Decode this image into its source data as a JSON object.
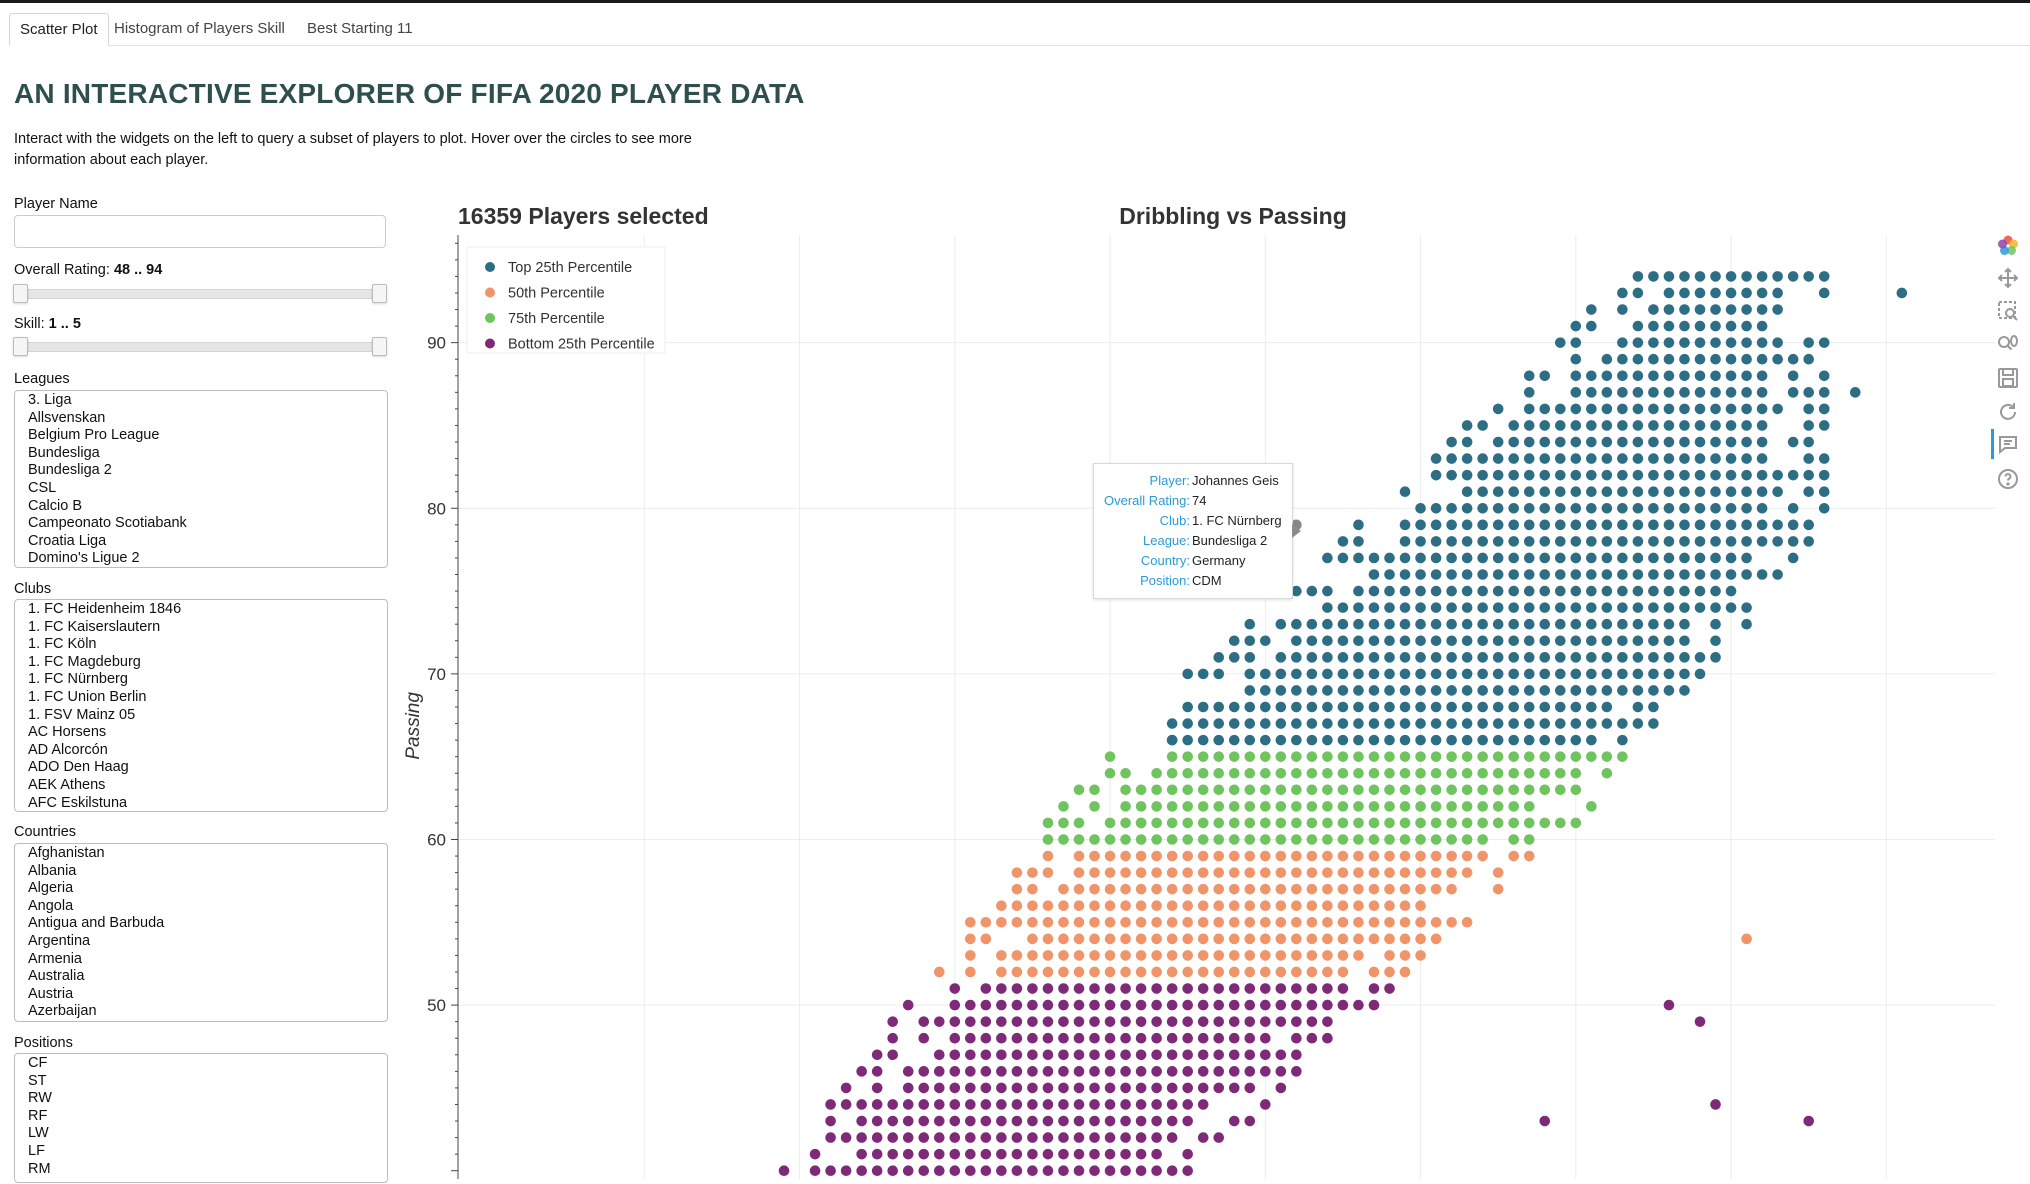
{
  "tabs": [
    {
      "label": "Scatter Plot",
      "active": true
    },
    {
      "label": "Histogram of Players Skill",
      "active": false
    },
    {
      "label": "Best Starting 11",
      "active": false
    }
  ],
  "page": {
    "title": "AN INTERACTIVE EXPLORER OF FIFA 2020 PLAYER DATA",
    "description": "Interact with the widgets on the left to query a subset of players to plot. Hover over the circles to see more information about each player."
  },
  "controls": {
    "player_name": {
      "label": "Player Name",
      "value": "",
      "placeholder": ""
    },
    "overall_rating": {
      "label": "Overall Rating:",
      "value_text": "48 .. 94",
      "range": [
        48,
        94
      ],
      "selected": [
        48,
        94
      ]
    },
    "skill": {
      "label": "Skill:",
      "value_text": "1 .. 5",
      "range": [
        1,
        5
      ],
      "selected": [
        1,
        5
      ]
    },
    "leagues": {
      "label": "Leagues",
      "options": [
        "3. Liga",
        "Allsvenskan",
        "Belgium Pro League",
        "Bundesliga",
        "Bundesliga 2",
        "CSL",
        "Calcio B",
        "Campeonato Scotiabank",
        "Croatia Liga",
        "Domino's Ligue 2"
      ]
    },
    "clubs": {
      "label": "Clubs",
      "options": [
        "1. FC Heidenheim 1846",
        "1. FC Kaiserslautern",
        "1. FC Köln",
        "1. FC Magdeburg",
        "1. FC Nürnberg",
        "1. FC Union Berlin",
        "1. FSV Mainz 05",
        "AC Horsens",
        "AD Alcorcón",
        "ADO Den Haag",
        "AEK Athens",
        "AFC Eskilstuna"
      ]
    },
    "countries": {
      "label": "Countries",
      "options": [
        "Afghanistan",
        "Albania",
        "Algeria",
        "Angola",
        "Antigua and Barbuda",
        "Argentina",
        "Armenia",
        "Australia",
        "Austria",
        "Azerbaijan"
      ]
    },
    "positions": {
      "label": "Positions",
      "options": [
        "CF",
        "ST",
        "RW",
        "RF",
        "LW",
        "LF",
        "RM"
      ]
    }
  },
  "plot": {
    "selection_text": "16359 Players selected",
    "title": "Dribbling vs Passing"
  },
  "chart_data": {
    "type": "scatter",
    "title": "Dribbling vs Passing",
    "xlabel": "",
    "ylabel": "Passing",
    "xlim": [
      18,
      117
    ],
    "ylim": [
      39.5,
      96.5
    ],
    "yticks": [
      50,
      60,
      70,
      80,
      90
    ],
    "grid": true,
    "legend_position": "top-left",
    "series": [
      {
        "name": "Top 25th Percentile",
        "color": "#2e6e84",
        "ymin": 66,
        "ymax": 94
      },
      {
        "name": "50th Percentile",
        "color": "#f0946a",
        "ymin": 52,
        "ymax": 59
      },
      {
        "name": "75th Percentile",
        "color": "#6fc45e",
        "ymin": 60,
        "ymax": 65
      },
      {
        "name": "Bottom 25th Percentile",
        "color": "#7e2a78",
        "ymin": 40,
        "ymax": 51
      }
    ],
    "hover_point": {
      "x": 72,
      "y": 79
    }
  },
  "tooltip": {
    "rows": [
      {
        "key": "Player:",
        "value": "Johannes Geis"
      },
      {
        "key": "Overall Rating:",
        "value": "74"
      },
      {
        "key": "Club:",
        "value": "1. FC Nürnberg"
      },
      {
        "key": "League:",
        "value": "Bundesliga 2"
      },
      {
        "key": "Country:",
        "value": "Germany"
      },
      {
        "key": "Position:",
        "value": "CDM"
      }
    ]
  },
  "toolbar": {
    "tools": [
      "bokeh-logo-icon",
      "pan-icon",
      "box-zoom-icon",
      "wheel-zoom-icon",
      "save-icon",
      "reset-icon",
      "hover-icon",
      "help-icon"
    ]
  }
}
